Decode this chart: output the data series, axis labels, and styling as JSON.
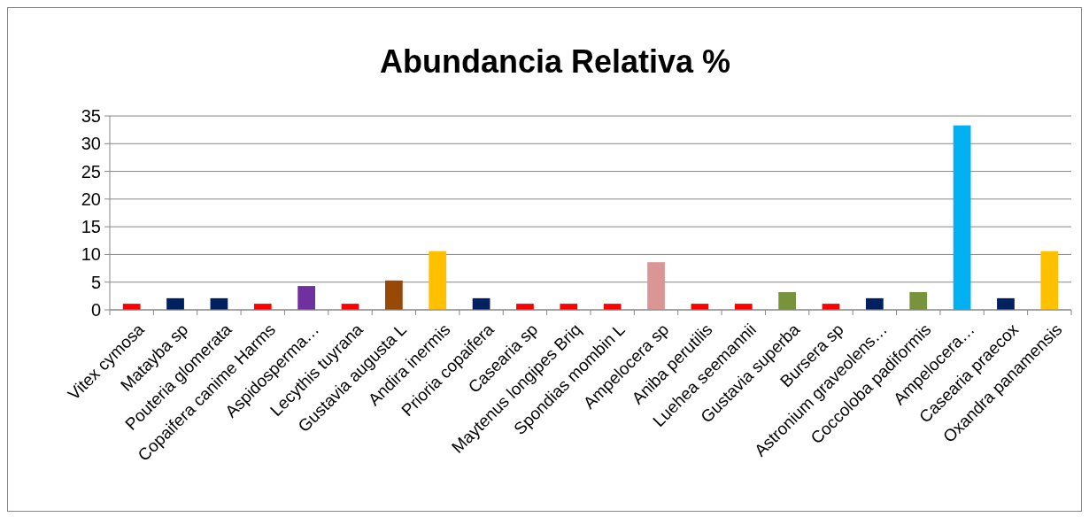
{
  "chart_data": {
    "type": "bar",
    "title": "Abundancia Relativa %",
    "categories": [
      "Vitex cymosa",
      "Matayba sp",
      "Pouteria glomerata",
      "Copaifera canime Harms",
      "Aspidosperma…",
      "Lecythis tuyrana",
      "Gustavia augusta L",
      "Andira inermis",
      "Prioria copaifera",
      "Casearia sp",
      "Maytenus longipes Briq",
      "Spondias mombin L",
      "Ampelocera sp",
      "Aniba perutilis",
      "Luehea seemannii",
      "Gustavia superba",
      "Bursera sp",
      "Astronium graveolens…",
      "Coccoloba padiformis",
      "Ampelocera…",
      "Casearia praecox",
      "Oxandra panamensis"
    ],
    "values": [
      1.1,
      2.1,
      2.1,
      1.1,
      4.3,
      1.1,
      5.3,
      10.6,
      2.1,
      1.1,
      1.1,
      1.1,
      8.6,
      1.1,
      1.1,
      3.2,
      1.1,
      2.1,
      3.2,
      33.3,
      2.1,
      10.6
    ],
    "colors": [
      "#ff0000",
      "#002060",
      "#002060",
      "#ff0000",
      "#7030a0",
      "#ff0000",
      "#984807",
      "#ffc000",
      "#002060",
      "#ff0000",
      "#ff0000",
      "#ff0000",
      "#d99694",
      "#ff0000",
      "#ff0000",
      "#77933c",
      "#ff0000",
      "#002060",
      "#77933c",
      "#00b0f0",
      "#002060",
      "#ffc000"
    ],
    "ylim": [
      0,
      35
    ],
    "yticks": [
      0,
      5,
      10,
      15,
      20,
      25,
      30,
      35
    ],
    "grid": "y"
  }
}
